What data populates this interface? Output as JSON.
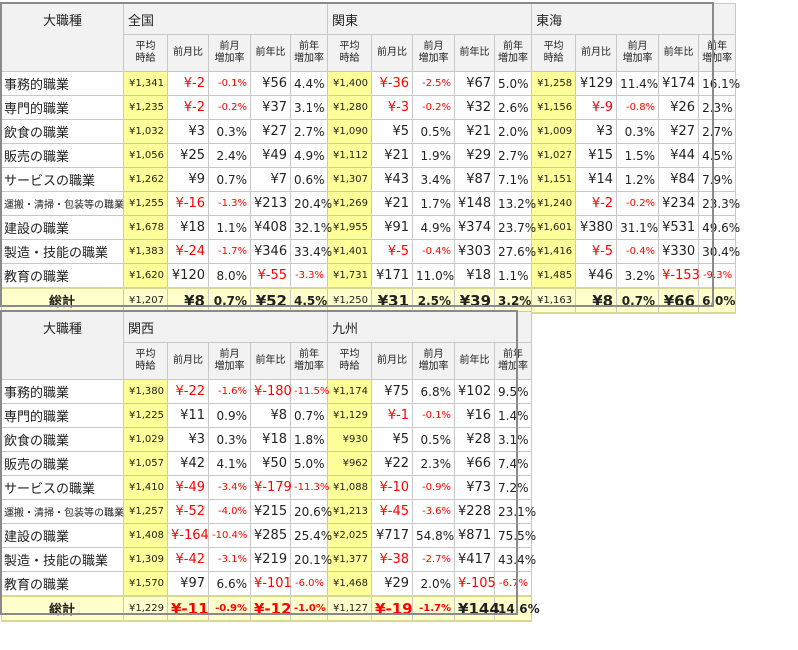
{
  "header": {
    "corner": "大職種",
    "sub": [
      "平均\n時給",
      "前月比",
      "前月\n増加率",
      "前年比",
      "前年\n増加率"
    ]
  },
  "top": {
    "regions": [
      "全国",
      "関東",
      "東海"
    ],
    "rows": [
      {
        "label": "事務的職業",
        "cells": [
          [
            "¥1,341",
            "¥-2",
            "-0.1%",
            "¥56",
            "4.4%"
          ],
          [
            "¥1,400",
            "¥-36",
            "-2.5%",
            "¥67",
            "5.0%"
          ],
          [
            "¥1,258",
            "¥129",
            "11.4%",
            "¥174",
            "16.1%"
          ]
        ]
      },
      {
        "label": "専門的職業",
        "cells": [
          [
            "¥1,235",
            "¥-2",
            "-0.2%",
            "¥37",
            "3.1%"
          ],
          [
            "¥1,280",
            "¥-3",
            "-0.2%",
            "¥32",
            "2.6%"
          ],
          [
            "¥1,156",
            "¥-9",
            "-0.8%",
            "¥26",
            "2.3%"
          ]
        ]
      },
      {
        "label": "飲食の職業",
        "cells": [
          [
            "¥1,032",
            "¥3",
            "0.3%",
            "¥27",
            "2.7%"
          ],
          [
            "¥1,090",
            "¥5",
            "0.5%",
            "¥21",
            "2.0%"
          ],
          [
            "¥1,009",
            "¥3",
            "0.3%",
            "¥27",
            "2.7%"
          ]
        ]
      },
      {
        "label": "販売の職業",
        "cells": [
          [
            "¥1,056",
            "¥25",
            "2.4%",
            "¥49",
            "4.9%"
          ],
          [
            "¥1,112",
            "¥21",
            "1.9%",
            "¥29",
            "2.7%"
          ],
          [
            "¥1,027",
            "¥15",
            "1.5%",
            "¥44",
            "4.5%"
          ]
        ]
      },
      {
        "label": "サービスの職業",
        "cells": [
          [
            "¥1,262",
            "¥9",
            "0.7%",
            "¥7",
            "0.6%"
          ],
          [
            "¥1,307",
            "¥43",
            "3.4%",
            "¥87",
            "7.1%"
          ],
          [
            "¥1,151",
            "¥14",
            "1.2%",
            "¥84",
            "7.9%"
          ]
        ]
      },
      {
        "label": "運搬・清掃・包装等の職業",
        "cells": [
          [
            "¥1,255",
            "¥-16",
            "-1.3%",
            "¥213",
            "20.4%"
          ],
          [
            "¥1,269",
            "¥21",
            "1.7%",
            "¥148",
            "13.2%"
          ],
          [
            "¥1,240",
            "¥-2",
            "-0.2%",
            "¥234",
            "23.3%"
          ]
        ]
      },
      {
        "label": "建設の職業",
        "cells": [
          [
            "¥1,678",
            "¥18",
            "1.1%",
            "¥408",
            "32.1%"
          ],
          [
            "¥1,955",
            "¥91",
            "4.9%",
            "¥374",
            "23.7%"
          ],
          [
            "¥1,601",
            "¥380",
            "31.1%",
            "¥531",
            "49.6%"
          ]
        ]
      },
      {
        "label": "製造・技能の職業",
        "cells": [
          [
            "¥1,383",
            "¥-24",
            "-1.7%",
            "¥346",
            "33.4%"
          ],
          [
            "¥1,401",
            "¥-5",
            "-0.4%",
            "¥303",
            "27.6%"
          ],
          [
            "¥1,416",
            "¥-5",
            "-0.4%",
            "¥330",
            "30.4%"
          ]
        ]
      },
      {
        "label": "教育の職業",
        "cells": [
          [
            "¥1,620",
            "¥120",
            "8.0%",
            "¥-55",
            "-3.3%"
          ],
          [
            "¥1,731",
            "¥171",
            "11.0%",
            "¥18",
            "1.1%"
          ],
          [
            "¥1,485",
            "¥46",
            "3.2%",
            "¥-153",
            "-9.3%"
          ]
        ]
      }
    ],
    "total": {
      "label": "総計",
      "cells": [
        [
          "¥1,207",
          "¥8",
          "0.7%",
          "¥52",
          "4.5%"
        ],
        [
          "¥1,250",
          "¥31",
          "2.5%",
          "¥39",
          "3.2%"
        ],
        [
          "¥1,163",
          "¥8",
          "0.7%",
          "¥66",
          "6.0%"
        ]
      ]
    }
  },
  "bottom": {
    "regions": [
      "関西",
      "九州"
    ],
    "rows": [
      {
        "label": "事務的職業",
        "cells": [
          [
            "¥1,380",
            "¥-22",
            "-1.6%",
            "¥-180",
            "-11.5%"
          ],
          [
            "¥1,174",
            "¥75",
            "6.8%",
            "¥102",
            "9.5%"
          ]
        ]
      },
      {
        "label": "専門的職業",
        "cells": [
          [
            "¥1,225",
            "¥11",
            "0.9%",
            "¥8",
            "0.7%"
          ],
          [
            "¥1,129",
            "¥-1",
            "-0.1%",
            "¥16",
            "1.4%"
          ]
        ]
      },
      {
        "label": "飲食の職業",
        "cells": [
          [
            "¥1,029",
            "¥3",
            "0.3%",
            "¥18",
            "1.8%"
          ],
          [
            "¥930",
            "¥5",
            "0.5%",
            "¥28",
            "3.1%"
          ]
        ]
      },
      {
        "label": "販売の職業",
        "cells": [
          [
            "¥1,057",
            "¥42",
            "4.1%",
            "¥50",
            "5.0%"
          ],
          [
            "¥962",
            "¥22",
            "2.3%",
            "¥66",
            "7.4%"
          ]
        ]
      },
      {
        "label": "サービスの職業",
        "cells": [
          [
            "¥1,410",
            "¥-49",
            "-3.4%",
            "¥-179",
            "-11.3%"
          ],
          [
            "¥1,088",
            "¥-10",
            "-0.9%",
            "¥73",
            "7.2%"
          ]
        ]
      },
      {
        "label": "運搬・清掃・包装等の職業",
        "cells": [
          [
            "¥1,257",
            "¥-52",
            "-4.0%",
            "¥215",
            "20.6%"
          ],
          [
            "¥1,213",
            "¥-45",
            "-3.6%",
            "¥228",
            "23.1%"
          ]
        ]
      },
      {
        "label": "建設の職業",
        "cells": [
          [
            "¥1,408",
            "¥-164",
            "-10.4%",
            "¥285",
            "25.4%"
          ],
          [
            "¥2,025",
            "¥717",
            "54.8%",
            "¥871",
            "75.5%"
          ]
        ]
      },
      {
        "label": "製造・技能の職業",
        "cells": [
          [
            "¥1,309",
            "¥-42",
            "-3.1%",
            "¥219",
            "20.1%"
          ],
          [
            "¥1,377",
            "¥-38",
            "-2.7%",
            "¥417",
            "43.4%"
          ]
        ]
      },
      {
        "label": "教育の職業",
        "cells": [
          [
            "¥1,570",
            "¥97",
            "6.6%",
            "¥-101",
            "-6.0%"
          ],
          [
            "¥1,468",
            "¥29",
            "2.0%",
            "¥-105",
            "-6.7%"
          ]
        ]
      }
    ],
    "total": {
      "label": "総計",
      "cells": [
        [
          "¥1,229",
          "¥-11",
          "-0.9%",
          "¥-12",
          "-1.0%"
        ],
        [
          "¥1,127",
          "¥-19",
          "-1.7%",
          "¥144",
          "14.6%"
        ]
      ]
    }
  }
}
